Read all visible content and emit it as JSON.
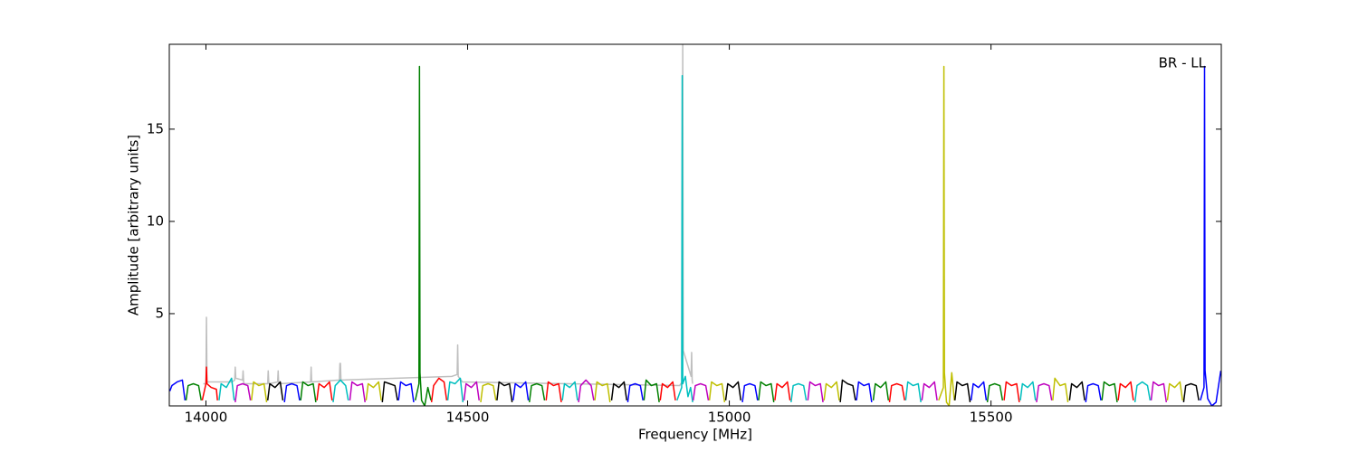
{
  "chart_data": {
    "type": "line",
    "xlabel": "Frequency [MHz]",
    "ylabel": "Amplitude [arbitrary units]",
    "annotation": "BR - LL",
    "xlim": [
      13930,
      15940
    ],
    "ylim": [
      0,
      19.6
    ],
    "xticks": [
      14000,
      14500,
      15000,
      15500
    ],
    "yticks": [
      5,
      10,
      15
    ],
    "series": [
      {
        "color": "#bfbfbf",
        "x": [
          13995,
          14000,
          14001,
          14002,
          14050,
          14055,
          14056,
          14057,
          14070,
          14071,
          14072,
          14073,
          14118,
          14119,
          14120,
          14121,
          14137,
          14138,
          14139,
          14200,
          14201,
          14202,
          14255,
          14256,
          14257,
          14258,
          14470,
          14480,
          14481,
          14482,
          14490,
          14905,
          14910,
          14911,
          14912,
          14927,
          14928,
          14929,
          14930
        ],
        "values": [
          1.2,
          1.2,
          4.8,
          1.3,
          1.3,
          1.4,
          2.1,
          1.5,
          1.4,
          1.9,
          1.3,
          1.2,
          1.2,
          1.9,
          1.3,
          1.2,
          1.3,
          1.9,
          1.2,
          1.3,
          2.1,
          1.3,
          1.4,
          2.3,
          2.3,
          1.4,
          1.6,
          1.7,
          3.3,
          1.6,
          1.3,
          1.1,
          1.3,
          19.6,
          3.0,
          1.6,
          2.9,
          1.4,
          1.2
        ]
      },
      {
        "color": "#0000ff",
        "x": [
          13931,
          13935,
          13945,
          13955,
          13960
        ],
        "values": [
          0.8,
          1.1,
          1.3,
          1.4,
          0.3
        ]
      },
      {
        "color": "#008000",
        "x": [
          13962,
          13966,
          13976,
          13986,
          13991
        ],
        "values": [
          0.3,
          1.1,
          1.2,
          1.1,
          0.3
        ]
      },
      {
        "color": "#ff0000",
        "x": [
          13993,
          14000,
          14001,
          14002,
          14010,
          14020,
          14022
        ],
        "values": [
          0.3,
          1.2,
          2.1,
          1.2,
          1.0,
          0.9,
          0.3
        ]
      },
      {
        "color": "#00bfbf",
        "x": [
          14025,
          14029,
          14039,
          14049,
          14054
        ],
        "values": [
          0.3,
          1.2,
          1.0,
          1.5,
          0.3
        ]
      },
      {
        "color": "#bf00bf",
        "x": [
          14056,
          14060,
          14070,
          14080,
          14085
        ],
        "values": [
          0.2,
          1.1,
          1.2,
          1.1,
          0.3
        ]
      },
      {
        "color": "#bfbf00",
        "x": [
          14087,
          14091,
          14101,
          14111,
          14116
        ],
        "values": [
          0.3,
          1.3,
          1.1,
          1.2,
          0.2
        ]
      },
      {
        "color": "#000000",
        "x": [
          14118,
          14122,
          14132,
          14142,
          14147
        ],
        "values": [
          0.3,
          1.2,
          1.0,
          1.3,
          0.3
        ]
      },
      {
        "color": "#0000ff",
        "x": [
          14150,
          14154,
          14164,
          14174,
          14179
        ],
        "values": [
          0.2,
          1.1,
          1.2,
          1.1,
          0.3
        ]
      },
      {
        "color": "#008000",
        "x": [
          14181,
          14185,
          14195,
          14205,
          14210
        ],
        "values": [
          0.3,
          1.3,
          1.1,
          1.2,
          0.2
        ]
      },
      {
        "color": "#ff0000",
        "x": [
          14212,
          14216,
          14226,
          14236,
          14241
        ],
        "values": [
          0.3,
          1.2,
          1.0,
          1.3,
          0.3
        ]
      },
      {
        "color": "#00bfbf",
        "x": [
          14243,
          14247,
          14257,
          14267,
          14272
        ],
        "values": [
          0.2,
          1.1,
          1.4,
          1.1,
          0.3
        ]
      },
      {
        "color": "#bf00bf",
        "x": [
          14275,
          14279,
          14289,
          14299,
          14304
        ],
        "values": [
          0.3,
          1.3,
          1.1,
          1.2,
          0.2
        ]
      },
      {
        "color": "#bfbf00",
        "x": [
          14306,
          14310,
          14320,
          14330,
          14335
        ],
        "values": [
          0.3,
          1.2,
          1.0,
          1.3,
          0.3
        ]
      },
      {
        "color": "#000000",
        "x": [
          14337,
          14341,
          14351,
          14361,
          14366
        ],
        "values": [
          0.2,
          1.3,
          1.2,
          1.1,
          0.3
        ]
      },
      {
        "color": "#0000ff",
        "x": [
          14368,
          14372,
          14382,
          14392,
          14397
        ],
        "values": [
          0.3,
          1.3,
          1.1,
          1.2,
          0.2
        ]
      },
      {
        "color": "#008000",
        "x": [
          14400,
          14407,
          14408,
          14409,
          14412,
          14418,
          14424,
          14430
        ],
        "values": [
          0.3,
          1.2,
          18.4,
          1.8,
          0.3,
          0.0,
          1.0,
          0.3
        ]
      },
      {
        "color": "#ff0000",
        "x": [
          14431,
          14435,
          14445,
          14455,
          14460
        ],
        "values": [
          0.2,
          1.1,
          1.5,
          1.3,
          0.3
        ]
      },
      {
        "color": "#00bfbf",
        "x": [
          14462,
          14466,
          14476,
          14486,
          14491
        ],
        "values": [
          0.3,
          1.3,
          1.2,
          1.5,
          0.2
        ]
      },
      {
        "color": "#bf00bf",
        "x": [
          14493,
          14497,
          14507,
          14517,
          14522
        ],
        "values": [
          0.3,
          1.2,
          1.0,
          1.3,
          0.3
        ]
      },
      {
        "color": "#bfbf00",
        "x": [
          14525,
          14529,
          14539,
          14549,
          14554
        ],
        "values": [
          0.2,
          1.1,
          1.2,
          1.1,
          0.3
        ]
      },
      {
        "color": "#000000",
        "x": [
          14556,
          14560,
          14570,
          14580,
          14585
        ],
        "values": [
          0.3,
          1.3,
          1.1,
          1.2,
          0.2
        ]
      },
      {
        "color": "#0000ff",
        "x": [
          14587,
          14591,
          14601,
          14611,
          14616
        ],
        "values": [
          0.3,
          1.2,
          1.0,
          1.3,
          0.3
        ]
      },
      {
        "color": "#008000",
        "x": [
          14618,
          14622,
          14632,
          14642,
          14647
        ],
        "values": [
          0.2,
          1.1,
          1.2,
          1.1,
          0.3
        ]
      },
      {
        "color": "#ff0000",
        "x": [
          14650,
          14654,
          14664,
          14674,
          14679
        ],
        "values": [
          0.3,
          1.3,
          1.1,
          1.2,
          0.2
        ]
      },
      {
        "color": "#00bfbf",
        "x": [
          14681,
          14685,
          14695,
          14705,
          14710
        ],
        "values": [
          0.3,
          1.2,
          1.0,
          1.3,
          0.3
        ]
      },
      {
        "color": "#bf00bf",
        "x": [
          14712,
          14716,
          14726,
          14736,
          14741
        ],
        "values": [
          0.2,
          1.1,
          1.4,
          1.1,
          0.3
        ]
      },
      {
        "color": "#bfbf00",
        "x": [
          14743,
          14747,
          14757,
          14767,
          14772
        ],
        "values": [
          0.3,
          1.3,
          1.1,
          1.2,
          0.2
        ]
      },
      {
        "color": "#000000",
        "x": [
          14775,
          14779,
          14789,
          14799,
          14804
        ],
        "values": [
          0.3,
          1.2,
          1.0,
          1.3,
          0.3
        ]
      },
      {
        "color": "#0000ff",
        "x": [
          14806,
          14810,
          14820,
          14830,
          14835
        ],
        "values": [
          0.2,
          1.1,
          1.2,
          1.1,
          0.3
        ]
      },
      {
        "color": "#008000",
        "x": [
          14837,
          14841,
          14851,
          14861,
          14866
        ],
        "values": [
          0.3,
          1.4,
          1.1,
          1.2,
          0.2
        ]
      },
      {
        "color": "#ff0000",
        "x": [
          14868,
          14872,
          14882,
          14892,
          14897
        ],
        "values": [
          0.3,
          1.2,
          1.0,
          1.3,
          0.3
        ]
      },
      {
        "color": "#00bfbf",
        "x": [
          14900,
          14909,
          14910,
          14911,
          14916,
          14921,
          14926,
          14930
        ],
        "values": [
          0.3,
          1.0,
          17.9,
          1.2,
          1.6,
          0.5,
          1.0,
          0.2
        ]
      },
      {
        "color": "#bf00bf",
        "x": [
          14931,
          14935,
          14945,
          14955,
          14960
        ],
        "values": [
          0.3,
          1.1,
          1.2,
          1.1,
          0.3
        ]
      },
      {
        "color": "#bfbf00",
        "x": [
          14962,
          14966,
          14976,
          14986,
          14991
        ],
        "values": [
          0.3,
          1.3,
          1.1,
          1.2,
          0.2
        ]
      },
      {
        "color": "#000000",
        "x": [
          14993,
          14997,
          15007,
          15017,
          15022
        ],
        "values": [
          0.3,
          1.2,
          1.0,
          1.3,
          0.3
        ]
      },
      {
        "color": "#0000ff",
        "x": [
          15025,
          15029,
          15039,
          15049,
          15054
        ],
        "values": [
          0.2,
          1.1,
          1.2,
          1.1,
          0.3
        ]
      },
      {
        "color": "#008000",
        "x": [
          15056,
          15060,
          15070,
          15080,
          15085
        ],
        "values": [
          0.3,
          1.3,
          1.1,
          1.2,
          0.2
        ]
      },
      {
        "color": "#ff0000",
        "x": [
          15087,
          15091,
          15101,
          15111,
          15116
        ],
        "values": [
          0.3,
          1.2,
          1.0,
          1.3,
          0.3
        ]
      },
      {
        "color": "#00bfbf",
        "x": [
          15118,
          15122,
          15132,
          15142,
          15147
        ],
        "values": [
          0.2,
          1.1,
          1.2,
          1.1,
          0.3
        ]
      },
      {
        "color": "#bf00bf",
        "x": [
          15150,
          15154,
          15164,
          15174,
          15179
        ],
        "values": [
          0.3,
          1.3,
          1.1,
          1.2,
          0.2
        ]
      },
      {
        "color": "#bfbf00",
        "x": [
          15181,
          15185,
          15195,
          15205,
          15210
        ],
        "values": [
          0.3,
          1.2,
          1.0,
          1.3,
          0.3
        ]
      },
      {
        "color": "#000000",
        "x": [
          15212,
          15216,
          15226,
          15236,
          15241
        ],
        "values": [
          0.2,
          1.4,
          1.2,
          1.1,
          0.3
        ]
      },
      {
        "color": "#0000ff",
        "x": [
          15243,
          15247,
          15257,
          15267,
          15272
        ],
        "values": [
          0.3,
          1.3,
          1.1,
          1.2,
          0.2
        ]
      },
      {
        "color": "#008000",
        "x": [
          15275,
          15279,
          15289,
          15299,
          15304
        ],
        "values": [
          0.3,
          1.2,
          1.0,
          1.3,
          0.3
        ]
      },
      {
        "color": "#ff0000",
        "x": [
          15306,
          15310,
          15320,
          15330,
          15335
        ],
        "values": [
          0.2,
          1.1,
          1.2,
          1.1,
          0.3
        ]
      },
      {
        "color": "#00bfbf",
        "x": [
          15337,
          15341,
          15351,
          15361,
          15366
        ],
        "values": [
          0.3,
          1.3,
          1.1,
          1.2,
          0.2
        ]
      },
      {
        "color": "#bf00bf",
        "x": [
          15368,
          15372,
          15382,
          15392,
          15397
        ],
        "values": [
          0.3,
          1.2,
          1.0,
          1.3,
          0.3
        ]
      },
      {
        "color": "#bfbf00",
        "x": [
          15400,
          15409,
          15410,
          15411,
          15415,
          15420,
          15425,
          15430
        ],
        "values": [
          0.3,
          1.0,
          18.4,
          1.8,
          0.2,
          0.0,
          1.8,
          0.3
        ]
      },
      {
        "color": "#000000",
        "x": [
          15431,
          15435,
          15445,
          15455,
          15460
        ],
        "values": [
          0.3,
          1.3,
          1.1,
          1.2,
          0.2
        ]
      },
      {
        "color": "#0000ff",
        "x": [
          15462,
          15466,
          15476,
          15486,
          15491
        ],
        "values": [
          0.3,
          1.2,
          1.0,
          1.3,
          0.3
        ]
      },
      {
        "color": "#008000",
        "x": [
          15493,
          15497,
          15507,
          15517,
          15522
        ],
        "values": [
          0.2,
          1.1,
          1.2,
          1.1,
          0.3
        ]
      },
      {
        "color": "#ff0000",
        "x": [
          15525,
          15529,
          15539,
          15549,
          15554
        ],
        "values": [
          0.3,
          1.3,
          1.1,
          1.2,
          0.2
        ]
      },
      {
        "color": "#00bfbf",
        "x": [
          15556,
          15560,
          15570,
          15580,
          15585
        ],
        "values": [
          0.3,
          1.2,
          1.0,
          1.3,
          0.3
        ]
      },
      {
        "color": "#bf00bf",
        "x": [
          15587,
          15591,
          15601,
          15611,
          15616
        ],
        "values": [
          0.2,
          1.1,
          1.2,
          1.1,
          0.3
        ]
      },
      {
        "color": "#bfbf00",
        "x": [
          15618,
          15622,
          15632,
          15642,
          15647
        ],
        "values": [
          0.3,
          1.5,
          1.1,
          1.2,
          0.2
        ]
      },
      {
        "color": "#000000",
        "x": [
          15650,
          15654,
          15664,
          15674,
          15679
        ],
        "values": [
          0.3,
          1.2,
          1.0,
          1.3,
          0.3
        ]
      },
      {
        "color": "#0000ff",
        "x": [
          15681,
          15685,
          15695,
          15705,
          15710
        ],
        "values": [
          0.2,
          1.1,
          1.2,
          1.1,
          0.3
        ]
      },
      {
        "color": "#008000",
        "x": [
          15712,
          15716,
          15726,
          15736,
          15741
        ],
        "values": [
          0.3,
          1.3,
          1.1,
          1.2,
          0.2
        ]
      },
      {
        "color": "#ff0000",
        "x": [
          15743,
          15747,
          15757,
          15767,
          15772
        ],
        "values": [
          0.3,
          1.2,
          1.0,
          1.3,
          0.3
        ]
      },
      {
        "color": "#00bfbf",
        "x": [
          15775,
          15779,
          15789,
          15799,
          15804
        ],
        "values": [
          0.2,
          1.1,
          1.3,
          1.1,
          0.3
        ]
      },
      {
        "color": "#bf00bf",
        "x": [
          15806,
          15810,
          15820,
          15830,
          15835
        ],
        "values": [
          0.3,
          1.3,
          1.1,
          1.2,
          0.2
        ]
      },
      {
        "color": "#bfbf00",
        "x": [
          15837,
          15841,
          15851,
          15861,
          15866
        ],
        "values": [
          0.3,
          1.2,
          1.0,
          1.3,
          0.3
        ]
      },
      {
        "color": "#000000",
        "x": [
          15868,
          15872,
          15882,
          15892,
          15897
        ],
        "values": [
          0.2,
          1.1,
          1.2,
          1.1,
          0.3
        ]
      },
      {
        "color": "#0000ff",
        "x": [
          15900,
          15907,
          15908,
          15909,
          15914,
          15922,
          15930,
          15939
        ],
        "values": [
          0.3,
          1.0,
          18.4,
          1.9,
          0.4,
          0.0,
          0.2,
          1.9
        ]
      }
    ]
  }
}
